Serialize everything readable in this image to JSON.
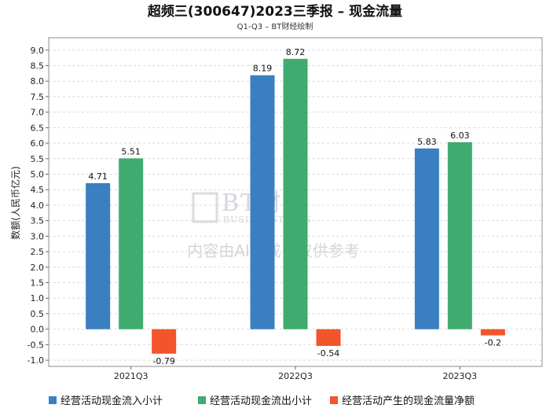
{
  "chart_data": {
    "type": "bar",
    "title": "超频三(300647)2023三季报 – 现金流量",
    "subtitle": "Q1-Q3 – BT财经绘制",
    "xlabel": "",
    "ylabel": "数额(人民币亿元)",
    "ylim": [
      -1.2,
      9.4
    ],
    "yticks": [
      "-1.0",
      "-0.5",
      "0.0",
      "0.5",
      "1.0",
      "1.5",
      "2.0",
      "2.5",
      "3.0",
      "3.5",
      "4.0",
      "4.5",
      "5.0",
      "5.5",
      "6.0",
      "6.5",
      "7.0",
      "7.5",
      "8.0",
      "8.5",
      "9.0"
    ],
    "categories": [
      "2021Q3",
      "2022Q3",
      "2023Q3"
    ],
    "series": [
      {
        "name": "经营活动现金流入小计",
        "color": "#3a7fc1",
        "values": [
          4.71,
          8.19,
          5.83
        ],
        "labels": [
          "4.71",
          "8.19",
          "5.83"
        ]
      },
      {
        "name": "经营活动现金流出小计",
        "color": "#3fab6f",
        "values": [
          5.51,
          8.72,
          6.03
        ],
        "labels": [
          "5.51",
          "8.72",
          "6.03"
        ]
      },
      {
        "name": "经营活动产生的现金流量净额",
        "color": "#f2552c",
        "values": [
          -0.79,
          -0.54,
          -0.2
        ],
        "labels": [
          "-0.79",
          "-0.54",
          "-0.2"
        ]
      }
    ],
    "legend_position": "bottom",
    "grid": true
  },
  "watermark": {
    "logo_text": "BT财经",
    "logo_sub": "BUSINESSTIMES",
    "notice": "内容由AI生成，仅供参考"
  }
}
